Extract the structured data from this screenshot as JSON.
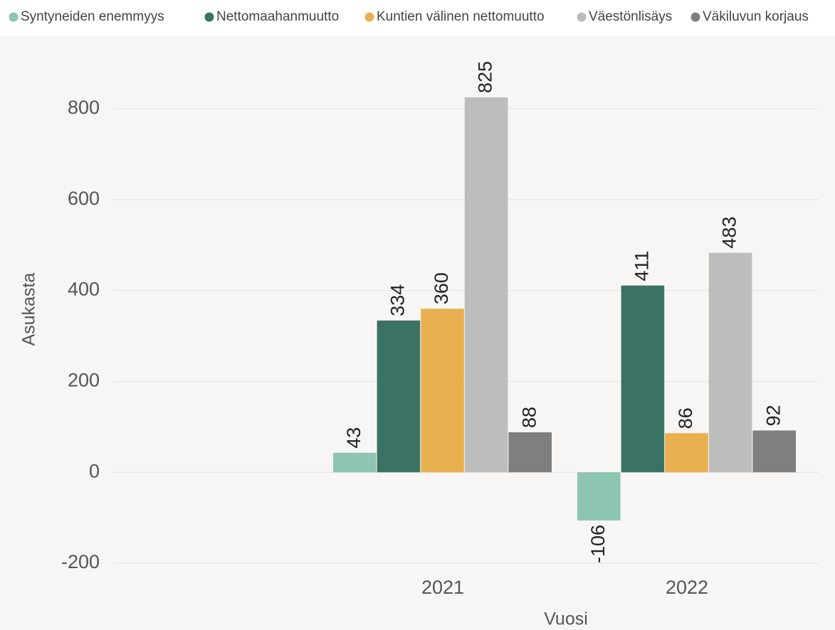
{
  "chart_data": {
    "type": "bar",
    "x_label": "Vuosi",
    "y_label": "Asukasta",
    "categories": [
      "2021",
      "2022"
    ],
    "series": [
      {
        "name": "Syntyneiden enemmyys",
        "color": "#8cc5b0",
        "values": [
          43,
          -106
        ]
      },
      {
        "name": "Nettomaahanmuutto",
        "color": "#3a7265",
        "values": [
          334,
          411
        ]
      },
      {
        "name": "Kuntien välinen nettomuutto",
        "color": "#e9b04f",
        "values": [
          360,
          86
        ]
      },
      {
        "name": "Väestönlisäys",
        "color": "#bdbdbd",
        "values": [
          825,
          483
        ]
      },
      {
        "name": "Väkiluvun korjaus",
        "color": "#7f7f7f",
        "values": [
          88,
          92
        ]
      }
    ],
    "ylim": [
      -250,
      900
    ],
    "yticks": [
      -200,
      0,
      200,
      400,
      600,
      800
    ],
    "grid": true,
    "legend": "top"
  }
}
